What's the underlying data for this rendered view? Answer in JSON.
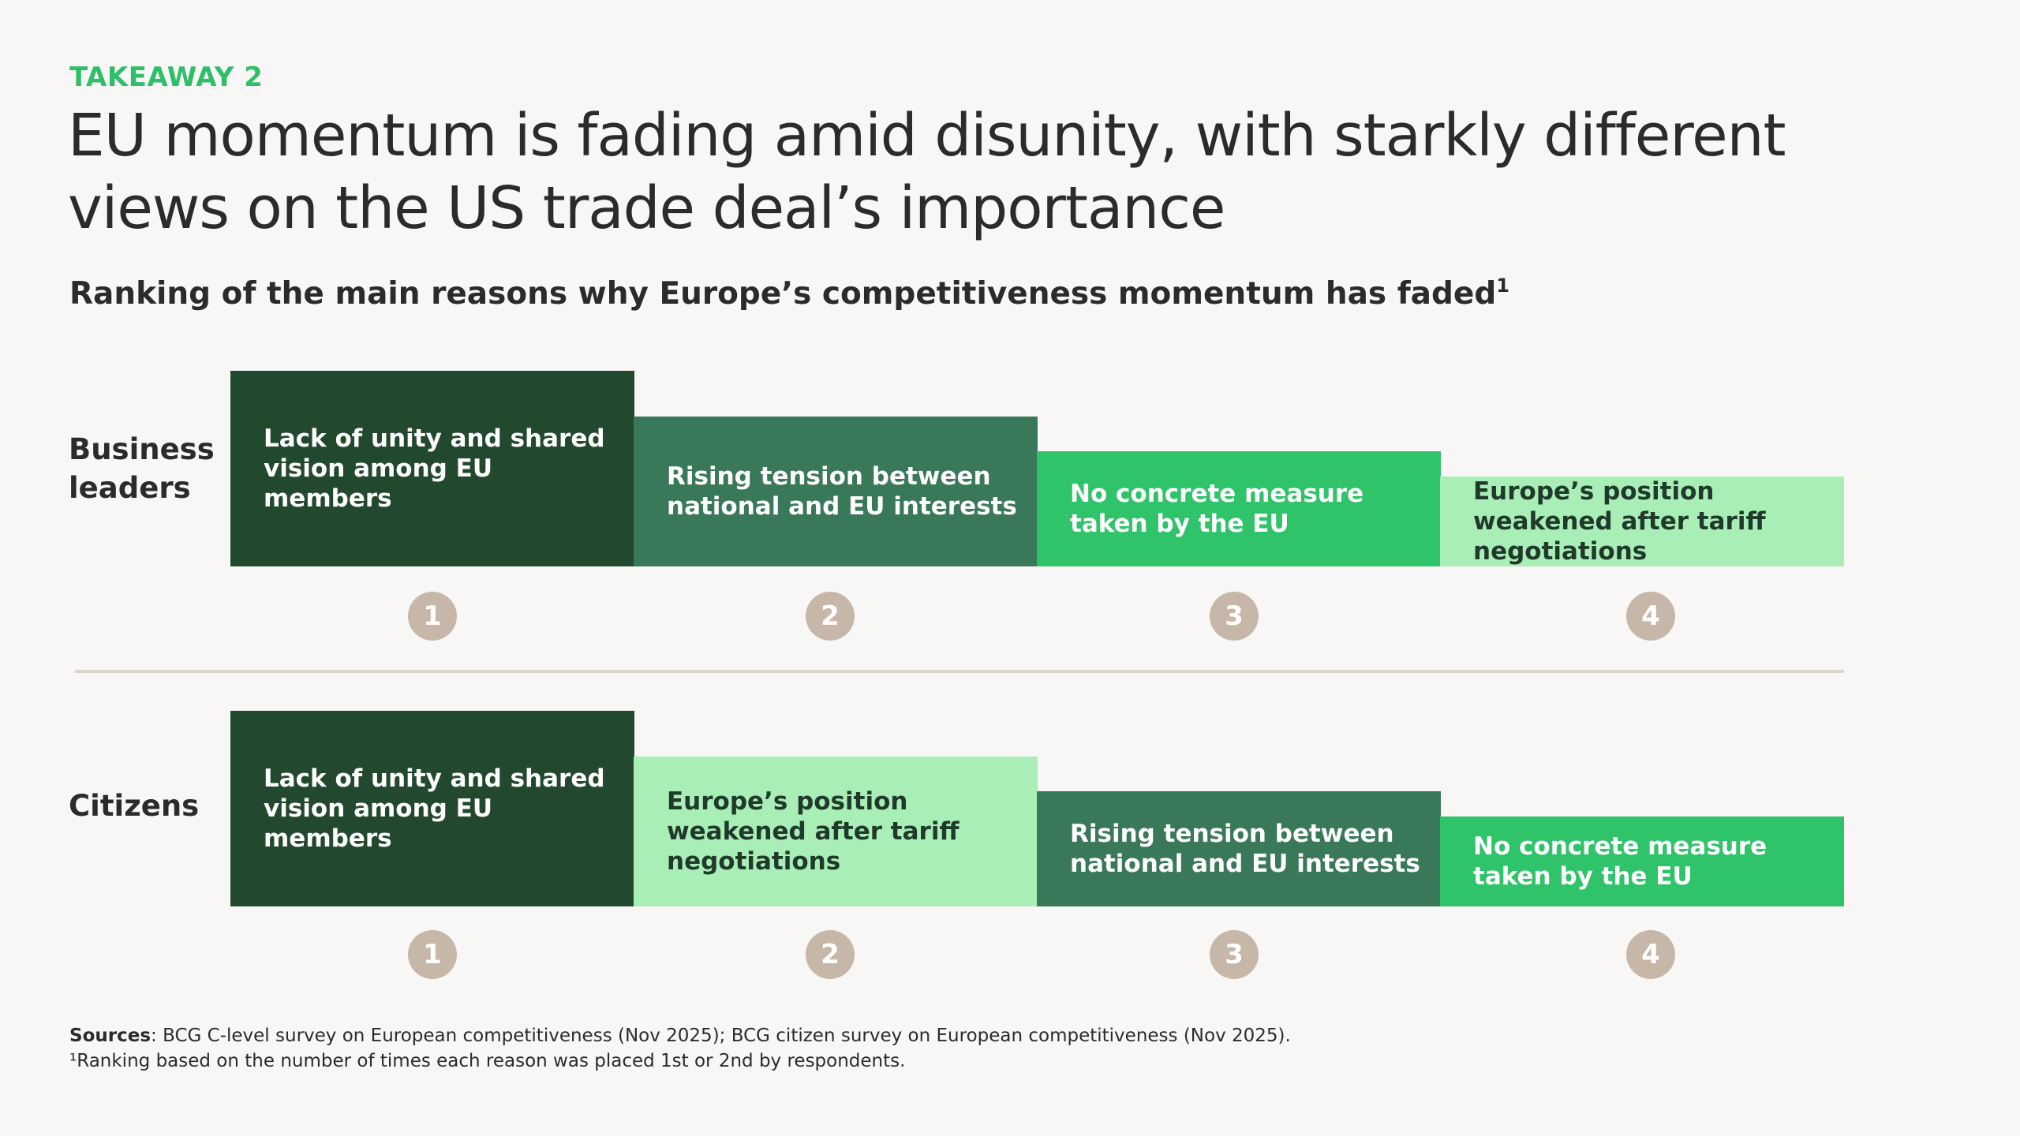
{
  "header": {
    "takeaway": "TAKEAWAY 2",
    "headline": "EU momentum is fading amid disunity, with starkly different views on the US trade deal’s importance",
    "subtitle": "Ranking of the main reasons why Europe’s competitiveness momentum has faded",
    "subtitle_footnote_mark": "1"
  },
  "colors": {
    "dark_green": "#22492e",
    "mid_green": "#3a785a",
    "bright_green": "#2fc36a",
    "light_green": "#a8eeb6",
    "badge": "#c6b7a9",
    "accent": "#2fbf6a",
    "divider": "#ddd6cf"
  },
  "chart_data": {
    "type": "table",
    "rank_labels": [
      "1",
      "2",
      "3",
      "4"
    ],
    "groups": [
      {
        "label": "Business leaders",
        "ranking": [
          {
            "rank": 1,
            "reason": "Lack of unity and shared vision among EU members",
            "color": "#22492e"
          },
          {
            "rank": 2,
            "reason": "Rising tension between national and EU interests",
            "color": "#3a785a"
          },
          {
            "rank": 3,
            "reason": "No concrete measure taken by the EU",
            "color": "#2fc36a"
          },
          {
            "rank": 4,
            "reason": "Europe’s position weakened after tariff negotiations",
            "color": "#a8eeb6"
          }
        ]
      },
      {
        "label": "Citizens",
        "ranking": [
          {
            "rank": 1,
            "reason": "Lack of unity and shared vision among EU members",
            "color": "#22492e"
          },
          {
            "rank": 2,
            "reason": "Europe’s position weakened after tariff negotiations",
            "color": "#a8eeb6"
          },
          {
            "rank": 3,
            "reason": "Rising tension between national and EU interests",
            "color": "#3a785a"
          },
          {
            "rank": 4,
            "reason": "No concrete measure taken by the EU",
            "color": "#2fc36a"
          }
        ]
      }
    ]
  },
  "footer": {
    "sources_label": "Sources",
    "sources_text": ": BCG C-level survey on European competitiveness (Nov 2025); BCG citizen survey on European competitiveness (Nov 2025).",
    "footnote": "¹Ranking based on the number of times each reason was placed 1st or 2nd by respondents."
  }
}
